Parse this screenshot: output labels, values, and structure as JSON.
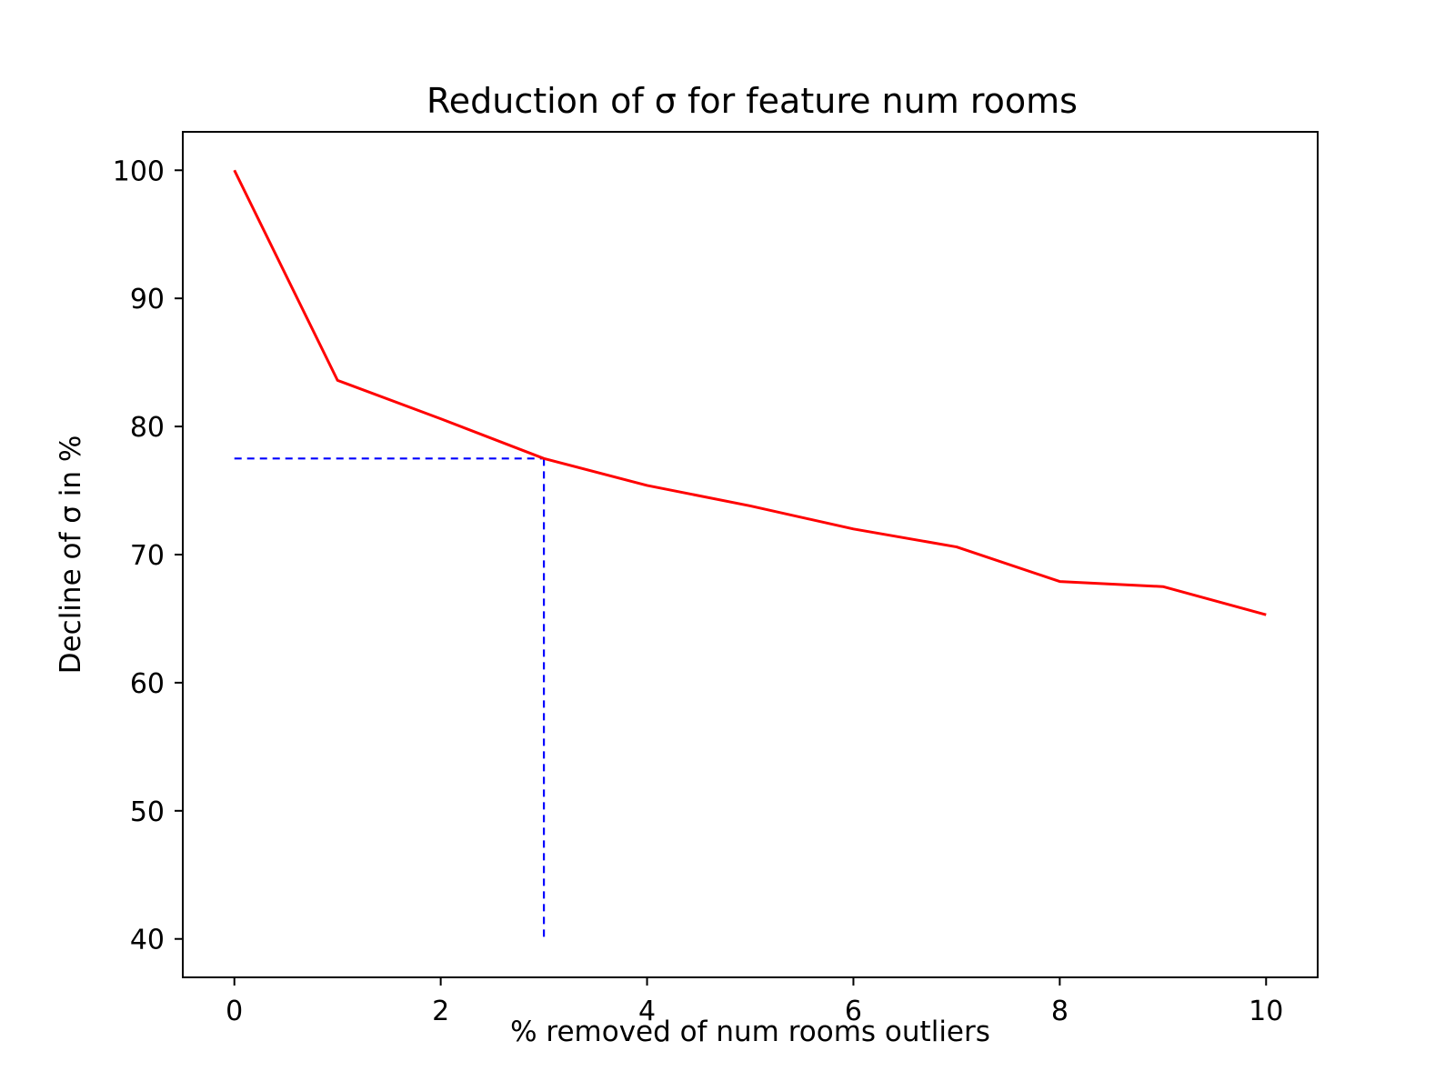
{
  "chart_data": {
    "type": "line",
    "title": "Reduction of σ for feature num rooms",
    "xlabel": "% removed of num rooms outliers",
    "ylabel": "Decline of σ in %",
    "xlim": [
      -0.5,
      10.5
    ],
    "ylim": [
      37,
      103
    ],
    "xticks": [
      0,
      2,
      4,
      6,
      8,
      10
    ],
    "yticks": [
      40,
      50,
      60,
      70,
      80,
      90,
      100
    ],
    "grid": false,
    "series": [
      {
        "style": "solid",
        "color": "#ff0000",
        "x": [
          0,
          1,
          2,
          3,
          4,
          5,
          6,
          7,
          8,
          9,
          10
        ],
        "y": [
          100,
          83.6,
          80.6,
          77.5,
          75.4,
          73.8,
          72.0,
          70.6,
          67.9,
          67.5,
          65.3
        ]
      }
    ],
    "reference_lines": [
      {
        "style": "dashed",
        "color": "#0000ff",
        "x": [
          0,
          3
        ],
        "y": [
          77.5,
          77.5
        ]
      },
      {
        "style": "dashed",
        "color": "#0000ff",
        "x": [
          3,
          3
        ],
        "y": [
          77.5,
          40
        ]
      }
    ]
  }
}
